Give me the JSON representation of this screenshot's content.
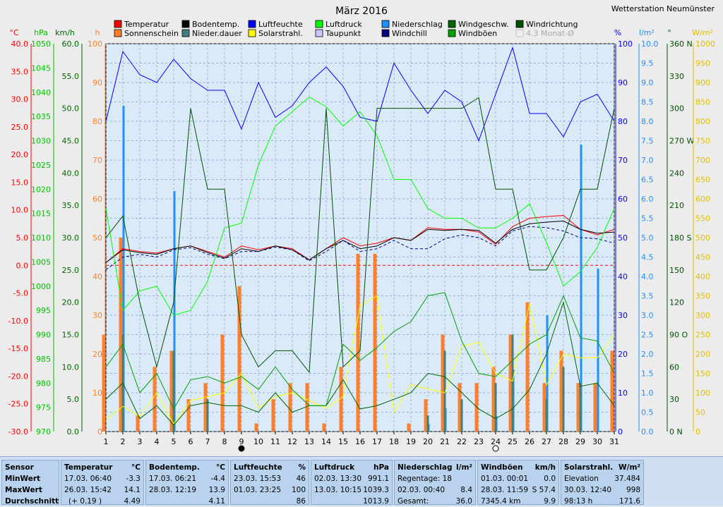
{
  "header": {
    "title": "März 2016",
    "station": "Wetterstation Neumünster"
  },
  "legend": [
    {
      "label": "Temperatur",
      "color": "#ff0000"
    },
    {
      "label": "Sonnenschein",
      "color": "#ff7f2a"
    },
    {
      "label": "Bodentemp.",
      "color": "#000000"
    },
    {
      "label": "Nieder.dauer",
      "color": "#3f7f7f"
    },
    {
      "label": "Luftfeuchte",
      "color": "#0000ff"
    },
    {
      "label": "Solarstrahl.",
      "color": "#ffff00"
    },
    {
      "label": "Luftdruck",
      "color": "#00ff00"
    },
    {
      "label": "Taupunkt",
      "color": "#c8c8ff"
    },
    {
      "label": "Niederschlag",
      "color": "#1e90ff"
    },
    {
      "label": "Windchill",
      "color": "#000080"
    },
    {
      "label": "Windgeschw.",
      "color": "#006400"
    },
    {
      "label": "Windböen",
      "color": "#00a000"
    },
    {
      "label": "Windrichtung",
      "color": "#005000"
    },
    {
      "label": "4.3 Monat-Ø",
      "color": "#bbbbbb"
    }
  ],
  "axes": {
    "temp_unit": "°C",
    "pressure_unit": "hPa",
    "wind_unit": "km/h",
    "hours_unit": "h",
    "humidity_unit": "%",
    "rain_unit": "l/m²",
    "dir_unit": "°",
    "solar_unit": "W/m²",
    "temp_ticks": [
      "40.0",
      "35.0",
      "30.0",
      "25.0",
      "20.0",
      "15.0",
      "10.0",
      "5.0",
      "0.0",
      "-5.0",
      "-10.0",
      "-15.0",
      "-20.0",
      "-25.0",
      "-30.0"
    ],
    "pressure_ticks": [
      "1050",
      "1045",
      "1040",
      "1035",
      "1030",
      "1025",
      "1020",
      "1015",
      "1010",
      "1005",
      "1000",
      "995",
      "990",
      "985",
      "980",
      "975",
      "970"
    ],
    "wind_ticks": [
      "60.0",
      "55.0",
      "50.0",
      "45.0",
      "40.0",
      "35.0",
      "30.0",
      "25.0",
      "20.0",
      "15.0",
      "10.0",
      "5.0",
      "0.0"
    ],
    "hours_ticks": [
      "100",
      "90",
      "80",
      "70",
      "60",
      "50",
      "40",
      "30",
      "20",
      "10",
      "0"
    ],
    "humidity_ticks": [
      "100",
      "90",
      "80",
      "70",
      "60",
      "50",
      "40",
      "30",
      "20",
      "10",
      "0"
    ],
    "rain_ticks": [
      "10.0",
      "9.5",
      "9.0",
      "8.5",
      "8.0",
      "7.5",
      "7.0",
      "6.5",
      "6.0",
      "5.5",
      "5.0",
      "4.5",
      "4.0",
      "3.5",
      "3.0",
      "2.5",
      "2.0",
      "1.5",
      "1.0",
      "0.5",
      "0.0"
    ],
    "dir_ticks": [
      "360 N",
      "330",
      "300",
      "270 W",
      "240",
      "210",
      "180 S",
      "150",
      "120",
      "90  O",
      "60",
      "30",
      "0   N"
    ],
    "solar_ticks": [
      "1000",
      "950",
      "900",
      "850",
      "800",
      "750",
      "700",
      "650",
      "600",
      "550",
      "500",
      "450",
      "400",
      "350",
      "300",
      "250",
      "200",
      "150",
      "100",
      "50",
      "0"
    ],
    "days": [
      "1",
      "2",
      "3",
      "4",
      "5",
      "6",
      "7",
      "8",
      "9",
      "10",
      "11",
      "12",
      "13",
      "14",
      "15",
      "16",
      "17",
      "18",
      "19",
      "20",
      "21",
      "22",
      "23",
      "24",
      "25",
      "26",
      "27",
      "28",
      "29",
      "30",
      "31"
    ]
  },
  "chart_data": {
    "type": "line",
    "title": "März 2016",
    "x": [
      1,
      2,
      3,
      4,
      5,
      6,
      7,
      8,
      9,
      10,
      11,
      12,
      13,
      14,
      15,
      16,
      17,
      18,
      19,
      20,
      21,
      22,
      23,
      24,
      25,
      26,
      27,
      28,
      29,
      30,
      31
    ],
    "series": [
      {
        "name": "Temperatur",
        "unit": "°C",
        "color": "#ff0000",
        "values": [
          0.5,
          3.0,
          2.5,
          2.2,
          3.0,
          3.5,
          2.5,
          1.5,
          3.5,
          2.8,
          3.5,
          3.0,
          1.0,
          3.0,
          5.0,
          3.5,
          4.0,
          5.0,
          4.5,
          6.8,
          6.5,
          6.5,
          6.0,
          3.8,
          7.0,
          8.5,
          8.8,
          9.0,
          6.5,
          5.5,
          6.5
        ]
      },
      {
        "name": "Bodentemp.",
        "unit": "°C",
        "color": "#000000",
        "values": [
          0.5,
          2.8,
          2.3,
          2.0,
          3.0,
          3.5,
          2.3,
          1.3,
          3.0,
          2.5,
          3.5,
          2.8,
          1.0,
          3.0,
          4.5,
          3.0,
          3.5,
          5.0,
          4.5,
          6.5,
          6.3,
          6.5,
          6.3,
          4.0,
          6.5,
          7.5,
          7.8,
          8.0,
          6.5,
          5.8,
          6.0
        ]
      },
      {
        "name": "Windchill",
        "unit": "°C",
        "color": "#000080",
        "values": [
          -0.8,
          1.5,
          2.0,
          1.5,
          2.8,
          3.2,
          2.0,
          1.2,
          2.5,
          2.5,
          3.3,
          2.8,
          0.8,
          2.5,
          4.5,
          2.5,
          3.0,
          4.5,
          3.0,
          3.0,
          4.8,
          5.5,
          5.0,
          3.5,
          6.2,
          7.0,
          6.8,
          6.2,
          5.0,
          4.8,
          4.0
        ]
      },
      {
        "name": "Luftfeuchte",
        "unit": "%",
        "color": "#0000ff",
        "values": [
          80,
          98,
          92,
          90,
          96,
          91,
          88,
          88,
          78,
          90,
          81,
          84,
          90,
          94,
          89,
          81,
          80,
          95,
          88,
          82,
          88,
          85,
          75,
          87,
          99,
          82,
          82,
          76,
          85,
          87,
          80
        ]
      },
      {
        "name": "Luftdruck",
        "unit": "hPa",
        "color": "#00ff00",
        "values": [
          1016,
          995,
          999,
          1000,
          994,
          995,
          1001,
          1012,
          1013,
          1025,
          1033,
          1036,
          1039,
          1037,
          1033,
          1036,
          1031,
          1022,
          1022,
          1016,
          1014,
          1014,
          1012,
          1012,
          1014,
          1017,
          1009,
          1000,
          1003,
          1008,
          1016
        ]
      },
      {
        "name": "Solarstrahl.",
        "unit": "W/m²",
        "color": "#ffff00",
        "values": [
          30,
          65,
          40,
          100,
          20,
          80,
          90,
          100,
          150,
          60,
          90,
          100,
          80,
          60,
          90,
          325,
          350,
          50,
          120,
          110,
          100,
          220,
          230,
          150,
          130,
          330,
          120,
          200,
          190,
          190,
          250
        ]
      },
      {
        "name": "Windgeschw.",
        "unit": "km/h",
        "color": "#006400",
        "values": [
          5.0,
          7.5,
          2.0,
          4.0,
          1.0,
          4.0,
          4.5,
          4.0,
          4.0,
          3.0,
          6.0,
          3.0,
          4.0,
          4.0,
          8.0,
          3.5,
          4.0,
          5.0,
          6.0,
          9.0,
          8.5,
          6.0,
          3.5,
          2.0,
          3.5,
          6.5,
          12.0,
          20.0,
          7.0,
          7.5,
          4.0
        ]
      },
      {
        "name": "Windböen",
        "unit": "km/h",
        "color": "#00a000",
        "values": [
          10,
          13.5,
          6,
          9,
          3.5,
          8,
          8.5,
          7.5,
          8.5,
          6.5,
          10,
          6.5,
          4,
          4,
          13.5,
          11,
          13,
          15.5,
          17,
          21,
          21.5,
          14,
          9,
          8.5,
          11,
          13.5,
          15,
          21,
          14.5,
          14,
          9
        ]
      },
      {
        "name": "Windrichtung",
        "unit": "°",
        "color": "#005000",
        "values": [
          180,
          200,
          120,
          60,
          120,
          300,
          225,
          225,
          90,
          60,
          75,
          75,
          55,
          300,
          60,
          75,
          300,
          300,
          300,
          300,
          300,
          300,
          310,
          225,
          225,
          150,
          150,
          180,
          225,
          225,
          300
        ]
      },
      {
        "name": "Niederschlag",
        "unit": "l/m²",
        "color": "#1e90ff",
        "type": "bar",
        "values": [
          0,
          8.4,
          0,
          0,
          6.2,
          0,
          0,
          0,
          0,
          0,
          0,
          0,
          0,
          0,
          0,
          0,
          0,
          0,
          0,
          0.2,
          0.6,
          0,
          0,
          0.4,
          1.6,
          0,
          3.0,
          0,
          7.4,
          4.2,
          0
        ]
      },
      {
        "name": "Sonnenschein",
        "unit": "h",
        "color": "#ff7f2a",
        "type": "bar",
        "values": [
          6,
          12,
          1,
          4,
          5,
          2,
          3,
          6,
          9,
          0.5,
          2,
          3,
          3,
          0.5,
          4,
          11,
          11,
          0,
          0.5,
          2,
          6,
          3,
          3,
          4,
          6,
          8,
          3,
          5,
          3,
          3,
          5
        ]
      },
      {
        "name": "Nieder.dauer",
        "unit": "h",
        "color": "#3f7f7f",
        "type": "bar",
        "values": [
          0,
          6,
          0,
          0,
          5,
          0,
          2,
          0,
          0,
          0,
          0,
          0,
          0,
          0,
          0,
          0,
          0,
          0,
          0,
          1,
          5,
          2,
          0,
          3,
          6,
          0,
          2,
          4,
          3,
          0,
          0
        ]
      }
    ],
    "grid": true
  },
  "markers": {
    "new_moon_day": 9,
    "full_moon_day": 24
  },
  "stats": {
    "row_labels": [
      "Sensor",
      "MinWert",
      "MaxWert",
      "Durchschnitt"
    ],
    "temperature": {
      "title": "Temperatur",
      "unit": "°C",
      "min_date": "17.03.",
      "min_time": "06:40",
      "min": "-3.3",
      "max_date": "26.03.",
      "max_time": "15:42",
      "max": "14.1",
      "avg_note": "(+ 0.19 )",
      "avg": "4.49"
    },
    "soil": {
      "title": "Bodentemp.",
      "unit": "°C",
      "min_date": "17.03.",
      "min_time": "06:21",
      "min": "-4.4",
      "max_date": "28.03.",
      "max_time": "12:19",
      "max": "13.9",
      "avg": "4.11"
    },
    "humidity": {
      "title": "Luftfeuchte",
      "unit": "%",
      "min_date": "23.03.",
      "min_time": "15:53",
      "min": "46",
      "max_date": "01.03.",
      "max_time": "23:25",
      "max": "100",
      "avg": "86"
    },
    "pressure": {
      "title": "Luftdruck",
      "unit": "hPa",
      "min_date": "02.03.",
      "min_time": "13:30",
      "min": "991.1",
      "max_date": "13.03.",
      "max_time": "10:15",
      "max": "1039.3",
      "avg": "1013.9"
    },
    "rain": {
      "title": "Niederschlag",
      "unit": "l/m²",
      "l1": "Regentage: 18",
      "l2_date": "02.03.",
      "l2_time": "00:40",
      "l2_val": "8.4",
      "l3": "Gesamt:",
      "l3_val": "36.0"
    },
    "gusts": {
      "title": "Windböen",
      "unit": "km/h",
      "min_date": "01.03.",
      "min_time": "00:01",
      "min": "0.0",
      "max_date": "28.03.",
      "max_time": "11:59",
      "max": "S 57.4",
      "avg_note": "7345.4 km",
      "avg": "9.9"
    },
    "solar": {
      "title": "Solarstrahl.",
      "unit": "W/m²",
      "l1": "Elevation",
      "l1_val": "37.484",
      "l2_date": "30.03.",
      "l2_time": "12:40",
      "l2_val": "998",
      "l3": "98:13 h",
      "l3_val": "171.6"
    }
  }
}
